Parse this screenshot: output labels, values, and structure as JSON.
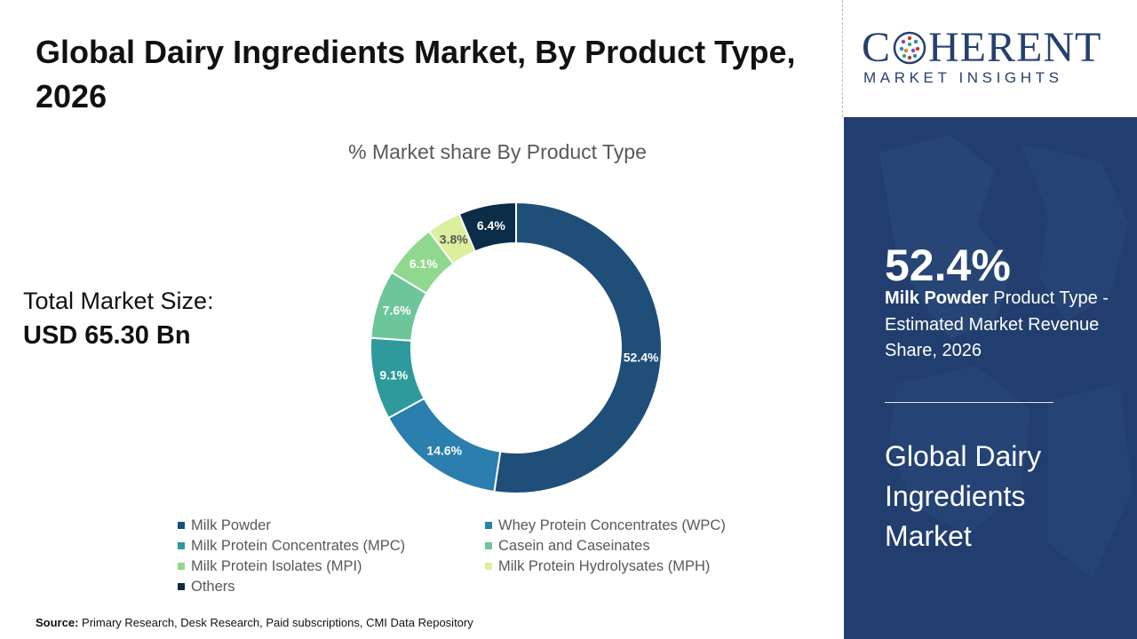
{
  "header": {
    "title": "Global Dairy Ingredients Market, By Product Type, 2026"
  },
  "market_size": {
    "label": "Total Market Size:",
    "value": "USD 65.30 Bn"
  },
  "source": {
    "label": "Source:",
    "text": "Primary Research, Desk Research, Paid subscriptions, CMI Data Repository"
  },
  "brand": {
    "name_prefix": "C",
    "name_suffix": "HERENT",
    "tagline": "MARKET INSIGHTS"
  },
  "highlight": {
    "value": "52.4%",
    "segment": "Milk Powder",
    "description": "Product Type - Estimated Market Revenue Share, 2026",
    "market_name": "Global Dairy Ingredients Market"
  },
  "colors": {
    "panel": "#223e6e",
    "brand": "#25406e"
  },
  "chart_data": {
    "type": "pie",
    "donut": true,
    "title": "% Market share By Product Type",
    "legend_position": "bottom",
    "categories": [
      "Milk Powder",
      "Whey Protein Concentrates (WPC)",
      "Milk Protein Concentrates (MPC)",
      "Casein and Caseinates",
      "Milk Protein Isolates (MPI)",
      "Milk Protein Hydrolysates (MPH)",
      "Others"
    ],
    "values": [
      52.4,
      14.6,
      9.1,
      7.6,
      6.1,
      3.8,
      6.4
    ],
    "labels": [
      "52.4%",
      "14.6%",
      "9.1%",
      "7.6%",
      "6.1%",
      "3.8%",
      "6.4%"
    ],
    "colors": [
      "#1f4e79",
      "#2a7fae",
      "#2e9a9c",
      "#6cc69a",
      "#8fd88d",
      "#dcef9d",
      "#0c2d48"
    ],
    "label_colors": [
      "#ffffff",
      "#ffffff",
      "#ffffff",
      "#ffffff",
      "#ffffff",
      "#555555",
      "#ffffff"
    ]
  }
}
